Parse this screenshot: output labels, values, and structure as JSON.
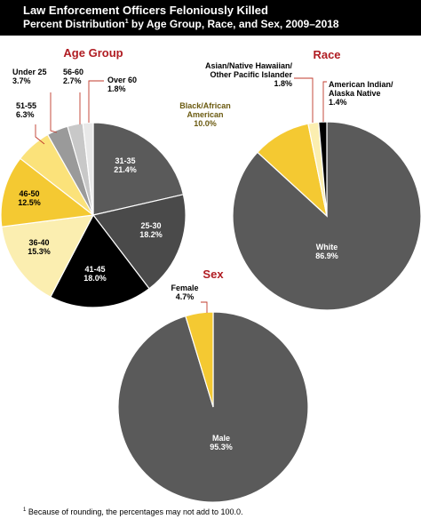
{
  "header": {
    "title": "Law Enforcement Officers Feloniously Killed",
    "subtitle_pre": "Percent Distribution",
    "subtitle_sup": "1",
    "subtitle_post": " by Age Group, Race, and Sex, 2009–2018"
  },
  "footnote": {
    "marker": "1",
    "text": " Because of rounding, the percentages may not add to 100.0."
  },
  "colors": {
    "accent_title": "#b01c22",
    "gray_dark": "#5a5a5a",
    "gray_mid": "#4a4a4a",
    "black": "#000000",
    "pale_yellow": "#fbeeb0",
    "gold": "#f4c932",
    "light_gray": "#d0d0d0",
    "gray_white": "#e8e8e8",
    "leader_red": "#c0392b"
  },
  "chart_data": [
    {
      "type": "pie",
      "title": "Age Group",
      "slices": [
        {
          "label": "31-35",
          "value": 21.4,
          "color": "#5a5a5a"
        },
        {
          "label": "25-30",
          "value": 18.2,
          "color": "#4a4a4a"
        },
        {
          "label": "41-45",
          "value": 18.0,
          "color": "#000000"
        },
        {
          "label": "36-40",
          "value": 15.3,
          "color": "#fbeeb0"
        },
        {
          "label": "46-50",
          "value": 12.5,
          "color": "#f4c932"
        },
        {
          "label": "51-55",
          "value": 6.3,
          "color": "#fbe27a"
        },
        {
          "label": "Under 25",
          "value": 3.7,
          "color": "#9a9a9a"
        },
        {
          "label": "56-60",
          "value": 2.7,
          "color": "#c8c8c8"
        },
        {
          "label": "Over 60",
          "value": 1.8,
          "color": "#e8e8e8"
        }
      ]
    },
    {
      "type": "pie",
      "title": "Race",
      "slices": [
        {
          "label": "White",
          "value": 86.9,
          "color": "#5a5a5a"
        },
        {
          "label": "Black/African American",
          "value": 10.0,
          "color": "#f4c932"
        },
        {
          "label": "Asian/Native Hawaiian/ Other Pacific Islander",
          "value": 1.8,
          "color": "#fbeeb0"
        },
        {
          "label": "American Indian/ Alaska Native",
          "value": 1.4,
          "color": "#000000"
        }
      ]
    },
    {
      "type": "pie",
      "title": "Sex",
      "slices": [
        {
          "label": "Male",
          "value": 95.3,
          "color": "#5a5a5a"
        },
        {
          "label": "Female",
          "value": 4.7,
          "color": "#f4c932"
        }
      ]
    }
  ]
}
